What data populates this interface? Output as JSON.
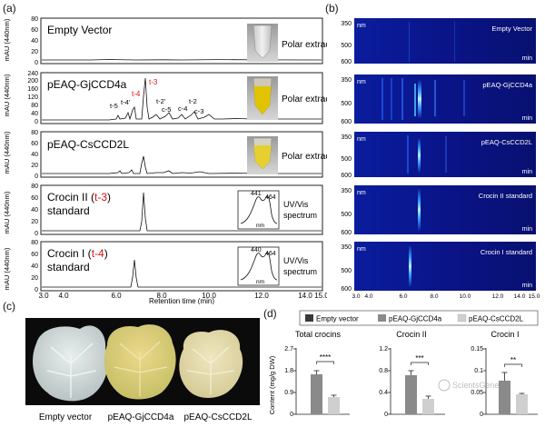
{
  "panel_labels": {
    "a": "(a)",
    "b": "(b)",
    "c": "(c)",
    "d": "(d)"
  },
  "hplc": {
    "y_label": "mAU (440nm)",
    "x_label": "Retention time (min)",
    "x_ticks": [
      "3.0",
      "4.0",
      "6.0",
      "8.0",
      "10.0",
      "12.0",
      "14.0",
      "15.0"
    ],
    "traces": [
      {
        "title": "Empty Vector",
        "note": "Polar extract",
        "ticks": [
          "80",
          "60",
          "40",
          "20",
          "0"
        ],
        "vial": "clear"
      },
      {
        "title": "pEAQ-GjCCD4a",
        "note": "Polar extract",
        "ticks": [
          "240",
          "200",
          "160",
          "120",
          "80",
          "40",
          "0"
        ],
        "vial": "yellow",
        "peaks": [
          {
            "label": "t-3",
            "red": true
          },
          {
            "label": "t-4",
            "red": true
          },
          {
            "label": "t-4'",
            "red": false
          },
          {
            "label": "t-5",
            "red": false
          },
          {
            "label": "t-2'",
            "red": false
          },
          {
            "label": "c-5",
            "red": false
          },
          {
            "label": "t-2",
            "red": false
          },
          {
            "label": "c-4",
            "red": false
          },
          {
            "label": "c-3",
            "red": false
          }
        ]
      },
      {
        "title": "pEAQ-CsCCD2L",
        "note": "Polar extract",
        "ticks": [
          "80",
          "60",
          "40",
          "20",
          "0"
        ],
        "vial": "light-yellow"
      },
      {
        "title_prefix": "Crocin II (",
        "title_code": "t-3",
        "title_suffix": ")",
        "title_line2": "standard",
        "ticks": [
          "80",
          "60",
          "40",
          "20",
          "0"
        ],
        "spectrum_peaks": [
          "441",
          "464"
        ],
        "spectrum_axis": "nm",
        "spectrum_label_1": "UV/Vis",
        "spectrum_label_2": "spectrum"
      },
      {
        "title_prefix": "Crocin I (",
        "title_code": "t-4",
        "title_suffix": ")",
        "title_line2": "standard",
        "ticks": [
          "80",
          "60",
          "40",
          "20",
          "0"
        ],
        "spectrum_peaks": [
          "440",
          "464"
        ],
        "spectrum_axis": "nm",
        "spectrum_label_1": "UV/Vis",
        "spectrum_label_2": "spectrum"
      }
    ]
  },
  "heatmaps": {
    "x_ticks": [
      "3.0",
      "4.0",
      "6.0",
      "8.0",
      "10.0",
      "12.0",
      "14.0",
      "15.0"
    ],
    "panels": [
      {
        "title": "Empty Vector",
        "y_ticks": [
          "350",
          "500",
          "600"
        ],
        "nm": "nm",
        "min": "min"
      },
      {
        "title": "pEAQ-GjCCD4a",
        "y_ticks": [
          "350",
          "500",
          "600"
        ],
        "nm": "nm",
        "min": "min"
      },
      {
        "title": "pEAQ-CsCCD2L",
        "y_ticks": [
          "350",
          "500",
          "600"
        ],
        "nm": "nm",
        "min": "min"
      },
      {
        "title": "Crocin II standard",
        "y_ticks": [
          "350",
          "500",
          "600"
        ],
        "nm": "nm",
        "min": "min"
      },
      {
        "title": "Crocin I standard",
        "y_ticks": [
          "350",
          "500",
          "600"
        ],
        "nm": "nm",
        "min": "min"
      }
    ]
  },
  "leaves": {
    "labels": [
      "Empty vector",
      "pEAQ-GjCCD4a",
      "pEAQ-CsCCD2L"
    ],
    "colors": [
      "#cfd6d6",
      "#d9d28a",
      "#e3dcae"
    ]
  },
  "bars": {
    "y_label": "Content (mg/g DW)",
    "legend": [
      "Empty vector",
      "pEAQ-GjCCD4a",
      "pEAQ-CsCCD2L"
    ],
    "colors": {
      "empty": "#3a3a3a",
      "gj": "#8a8a8a",
      "cs": "#cfcfcf"
    },
    "watermark": "ScientsGene",
    "chart_data": [
      {
        "type": "bar",
        "title": "Total crocins",
        "y_ticks": [
          "0",
          "0.9",
          "1.8",
          "2.7"
        ],
        "ylim": [
          0,
          2.7
        ],
        "series": [
          {
            "name": "pEAQ-GjCCD4a",
            "value": 1.65
          },
          {
            "name": "pEAQ-CsCCD2L",
            "value": 0.72
          }
        ],
        "sig": "****"
      },
      {
        "type": "bar",
        "title": "Crocin II",
        "y_ticks": [
          "0",
          "0.4",
          "0.8",
          "1.2"
        ],
        "ylim": [
          0,
          1.2
        ],
        "series": [
          {
            "name": "pEAQ-GjCCD4a",
            "value": 0.72
          },
          {
            "name": "pEAQ-CsCCD2L",
            "value": 0.28
          }
        ],
        "sig": "***"
      },
      {
        "type": "bar",
        "title": "Crocin I",
        "y_ticks": [
          "0",
          "0.05",
          "0.1",
          "0.15"
        ],
        "ylim": [
          0,
          0.15
        ],
        "series": [
          {
            "name": "pEAQ-GjCCD4a",
            "value": 0.075
          },
          {
            "name": "pEAQ-CsCCD2L",
            "value": 0.044
          }
        ],
        "sig": "**"
      }
    ]
  }
}
